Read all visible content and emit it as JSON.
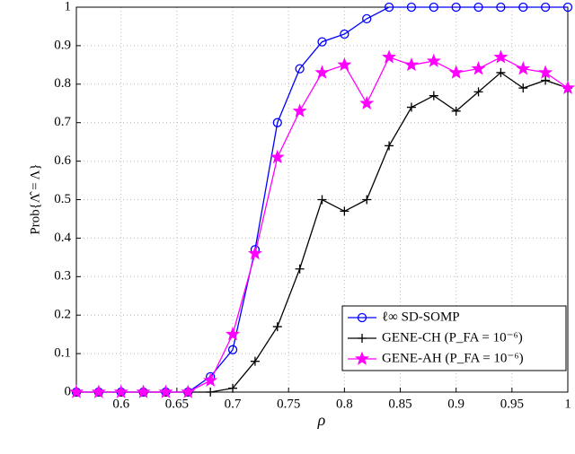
{
  "chart_data": {
    "type": "line",
    "xlabel": "ρ",
    "ylabel": "Prob{Λ̂ = Λ}",
    "x": [
      0.56,
      0.58,
      0.6,
      0.62,
      0.64,
      0.66,
      0.68,
      0.7,
      0.72,
      0.74,
      0.76,
      0.78,
      0.8,
      0.82,
      0.84,
      0.86,
      0.88,
      0.9,
      0.92,
      0.94,
      0.96,
      0.98,
      1
    ],
    "series": [
      {
        "name": "ℓ∞ SD-SOMP",
        "color": "#0000ff",
        "marker": "circle",
        "values": [
          0,
          0,
          0,
          0,
          0,
          0,
          0.04,
          0.11,
          0.37,
          0.7,
          0.84,
          0.91,
          0.93,
          0.97,
          1,
          1,
          1,
          1,
          1,
          1,
          1,
          1,
          1
        ]
      },
      {
        "name": "GENE-CH (P_FA = 10⁻⁶)",
        "color": "#000000",
        "marker": "plus",
        "values": [
          0,
          0,
          0,
          0,
          0,
          0,
          0,
          0.01,
          0.08,
          0.17,
          0.32,
          0.5,
          0.47,
          0.5,
          0.64,
          0.74,
          0.77,
          0.73,
          0.78,
          0.83,
          0.79,
          0.81,
          0.79
        ]
      },
      {
        "name": "GENE-AH (P_FA = 10⁻⁶)",
        "color": "#ff00ff",
        "marker": "star",
        "values": [
          0,
          0,
          0,
          0,
          0,
          0,
          0.03,
          0.15,
          0.36,
          0.61,
          0.73,
          0.83,
          0.85,
          0.75,
          0.87,
          0.85,
          0.86,
          0.83,
          0.84,
          0.87,
          0.84,
          0.83,
          0.79
        ]
      }
    ],
    "xlim": [
      0.56,
      1
    ],
    "ylim": [
      0,
      1
    ],
    "xticks": [
      0.6,
      0.65,
      0.7,
      0.75,
      0.8,
      0.85,
      0.9,
      0.95,
      1
    ],
    "yticks": [
      0,
      0.1,
      0.2,
      0.3,
      0.4,
      0.5,
      0.6,
      0.7,
      0.8,
      0.9,
      1
    ],
    "grid": true,
    "legend": "lower right"
  }
}
